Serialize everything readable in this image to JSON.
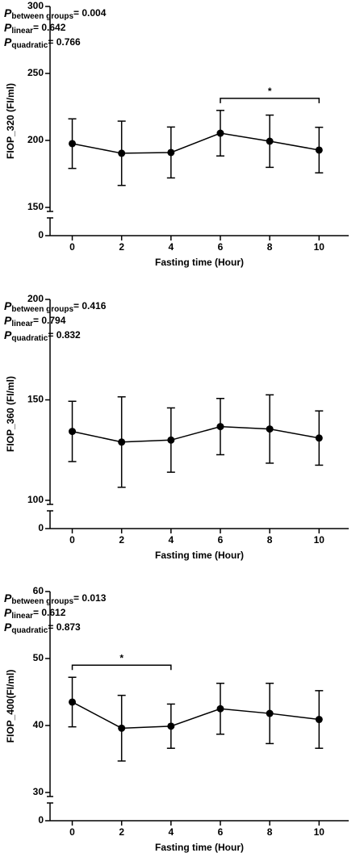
{
  "chart_data": [
    {
      "type": "line",
      "ylabel": "FIOP_320 (FI/ml)",
      "xlabel": "Fasting time (Hour)",
      "x": [
        0,
        2,
        4,
        6,
        8,
        10
      ],
      "xlim": [
        -0.9,
        11.2
      ],
      "xticks": [
        0,
        2,
        4,
        6,
        8,
        10
      ],
      "ylim": [
        0,
        300
      ],
      "yticks": [
        0,
        150,
        200,
        250,
        300
      ],
      "y_break": [
        0,
        150
      ],
      "series": [
        {
          "color": "#000000",
          "values": [
            197.6,
            190.4,
            191,
            205.4,
            199.4,
            192.8
          ],
          "errors": [
            18.5,
            24,
            19,
            17,
            19.5,
            17
          ]
        }
      ],
      "stats": [
        {
          "symbol": "P",
          "label": "between groups",
          "text": "= 0.004"
        },
        {
          "symbol": "P",
          "label": "linear",
          "text": "= 0.642"
        },
        {
          "symbol": "P",
          "label": "quadratic",
          "text": "= 0.766"
        }
      ],
      "annotations": [
        {
          "text": "*",
          "x": [
            6,
            10
          ]
        }
      ]
    },
    {
      "type": "line",
      "ylabel": "FIOP_360 (FI/ml)",
      "xlabel": "Fasting time (Hour)",
      "x": [
        0,
        2,
        4,
        6,
        8,
        10
      ],
      "xlim": [
        -0.9,
        11.2
      ],
      "xticks": [
        0,
        2,
        4,
        6,
        8,
        10
      ],
      "ylim": [
        0,
        200
      ],
      "yticks": [
        0,
        100,
        150,
        200
      ],
      "y_break": [
        0,
        100
      ],
      "series": [
        {
          "color": "#000000",
          "values": [
            134.3,
            129,
            130,
            136.7,
            135.5,
            131
          ],
          "errors": [
            15,
            22.5,
            16,
            14,
            17,
            13.5
          ]
        }
      ],
      "stats": [
        {
          "symbol": "P",
          "label": "between groups",
          "text": "= 0.416"
        },
        {
          "symbol": "P",
          "label": "linear",
          "text": "= 0.794"
        },
        {
          "symbol": "P",
          "label": "quadratic",
          "text": "= 0.832"
        }
      ],
      "annotations": []
    },
    {
      "type": "line",
      "ylabel": "FIOP_400(FI/ml)",
      "xlabel": "Fasting time (Hour)",
      "x": [
        0,
        2,
        4,
        6,
        8,
        10
      ],
      "xlim": [
        -0.9,
        11.2
      ],
      "xticks": [
        0,
        2,
        4,
        6,
        8,
        10
      ],
      "ylim": [
        0,
        60
      ],
      "yticks": [
        0,
        30,
        40,
        50,
        60
      ],
      "y_break": [
        0,
        30
      ],
      "series": [
        {
          "color": "#000000",
          "values": [
            43.5,
            39.6,
            39.9,
            42.5,
            41.8,
            40.9
          ],
          "errors": [
            3.7,
            4.9,
            3.3,
            3.8,
            4.5,
            4.3
          ]
        }
      ],
      "stats": [
        {
          "symbol": "P",
          "label": "between groups",
          "text": "= 0.013"
        },
        {
          "symbol": "P",
          "label": "linear",
          "text": "= 0.612"
        },
        {
          "symbol": "P",
          "label": "quadratic",
          "text": "= 0.873"
        }
      ],
      "annotations": [
        {
          "text": "*",
          "x": [
            0,
            4
          ]
        }
      ]
    }
  ]
}
